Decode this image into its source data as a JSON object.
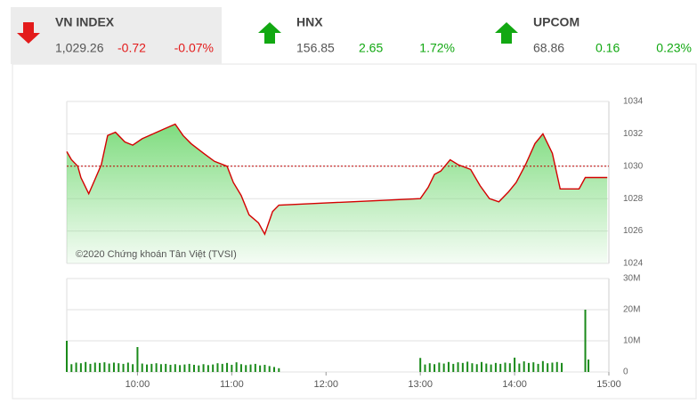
{
  "header": {
    "indices": [
      {
        "name": "VN INDEX",
        "value": "1,029.26",
        "change": "-0.72",
        "percent": "-0.07%",
        "direction": "down",
        "color": "#e31b1b",
        "highlight": true
      },
      {
        "name": "HNX",
        "value": "156.85",
        "change": "2.65",
        "percent": "1.72%",
        "direction": "up",
        "color": "#12a812",
        "highlight": false
      },
      {
        "name": "UPCOM",
        "value": "68.86",
        "change": "0.16",
        "percent": "0.23%",
        "direction": "up",
        "color": "#12a812",
        "highlight": false
      }
    ]
  },
  "chart_data": [
    {
      "type": "line",
      "watermark": "©2020 Chứng khoán Tân Việt (TVSI)",
      "x": [
        "09:15",
        "09:18",
        "09:22",
        "09:24",
        "09:29",
        "09:33",
        "09:37",
        "09:41",
        "09:46",
        "09:52",
        "09:57",
        "10:03",
        "10:10",
        "10:17",
        "10:24",
        "10:29",
        "10:34",
        "10:42",
        "10:49",
        "10:57",
        "11:01",
        "11:06",
        "11:11",
        "11:17",
        "11:21",
        "11:26",
        "11:30",
        "13:00",
        "13:05",
        "13:09",
        "13:13",
        "13:19",
        "13:24",
        "13:32",
        "13:38",
        "13:44",
        "13:50",
        "13:56",
        "14:01",
        "14:07",
        "14:13",
        "14:18",
        "14:24",
        "14:29",
        "14:41",
        "14:45",
        "14:59"
      ],
      "series": [
        {
          "color": "#d40000",
          "values": [
            1030.9,
            1030.4,
            1030,
            1029.3,
            1028.3,
            1029.2,
            1030.1,
            1031.9,
            1032.1,
            1031.5,
            1031.3,
            1031.7,
            1032,
            1032.3,
            1032.6,
            1031.9,
            1031.4,
            1030.8,
            1030.3,
            1030,
            1029,
            1028.2,
            1027,
            1026.5,
            1025.8,
            1027.2,
            1027.6,
            1028,
            1028.7,
            1029.5,
            1029.7,
            1030.4,
            1030.1,
            1029.8,
            1028.8,
            1028,
            1027.8,
            1028.4,
            1029,
            1030.1,
            1031.4,
            1032,
            1030.8,
            1028.6,
            1028.6,
            1029.3,
            1029.3
          ]
        }
      ],
      "reference": 1030,
      "reference_color": "#c00000",
      "area_color": "#7fdc7f",
      "xlim": [
        "09:15",
        "15:00"
      ],
      "ylim": [
        1024,
        1034
      ],
      "yticks": [
        1024,
        1026,
        1028,
        1030,
        1032,
        1034
      ],
      "grid": true
    },
    {
      "type": "bar",
      "color": "#1a8a1a",
      "x": [
        "09:15",
        "09:18",
        "09:21",
        "09:24",
        "09:27",
        "09:30",
        "09:33",
        "09:36",
        "09:39",
        "09:42",
        "09:45",
        "09:48",
        "09:51",
        "09:54",
        "09:57",
        "10:00",
        "10:03",
        "10:06",
        "10:09",
        "10:12",
        "10:15",
        "10:18",
        "10:21",
        "10:24",
        "10:27",
        "10:30",
        "10:33",
        "10:36",
        "10:39",
        "10:42",
        "10:45",
        "10:48",
        "10:51",
        "10:54",
        "10:57",
        "11:00",
        "11:03",
        "11:06",
        "11:09",
        "11:12",
        "11:15",
        "11:18",
        "11:21",
        "11:24",
        "11:27",
        "11:30",
        "13:00",
        "13:03",
        "13:06",
        "13:09",
        "13:12",
        "13:15",
        "13:18",
        "13:21",
        "13:24",
        "13:27",
        "13:30",
        "13:33",
        "13:36",
        "13:39",
        "13:42",
        "13:45",
        "13:48",
        "13:51",
        "13:54",
        "13:57",
        "14:00",
        "14:03",
        "14:06",
        "14:09",
        "14:12",
        "14:15",
        "14:18",
        "14:21",
        "14:24",
        "14:27",
        "14:30",
        "14:45",
        "14:47"
      ],
      "values": [
        10,
        2.5,
        3,
        2.8,
        3.2,
        2.6,
        3,
        2.9,
        3.1,
        2.7,
        3,
        2.8,
        2.6,
        3,
        2.5,
        8,
        2.7,
        2.4,
        2.6,
        2.8,
        2.5,
        2.6,
        2.3,
        2.5,
        2.2,
        2.4,
        2.6,
        2.3,
        2.1,
        2.5,
        2.2,
        2.4,
        2.8,
        2.6,
        2.9,
        2.3,
        3.1,
        2.5,
        2.2,
        2.4,
        2.6,
        2.1,
        2.3,
        1.9,
        1.6,
        1.2,
        4.5,
        2.4,
        2.8,
        2.5,
        3,
        2.7,
        3.2,
        2.6,
        3.1,
        2.9,
        3.3,
        2.8,
        2.5,
        3.2,
        2.7,
        2.4,
        2.9,
        2.6,
        3,
        2.8,
        4.6,
        2.7,
        3.4,
        2.9,
        3.1,
        2.6,
        3.5,
        2.8,
        3,
        3.2,
        2.9,
        20,
        4
      ],
      "xlim": [
        "09:15",
        "15:00"
      ],
      "xticks": [
        "10:00",
        "11:00",
        "12:00",
        "13:00",
        "14:00",
        "15:00"
      ],
      "ylim": [
        0,
        30
      ],
      "yticks": [
        0,
        {
          "value": 10,
          "label": "10M"
        },
        {
          "value": 20,
          "label": "20M"
        },
        {
          "value": 30,
          "label": "30M"
        }
      ],
      "grid": true
    }
  ]
}
